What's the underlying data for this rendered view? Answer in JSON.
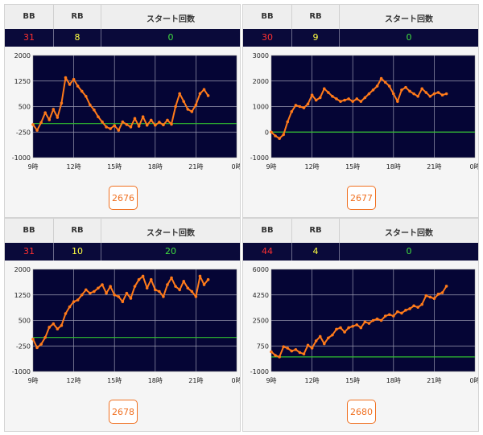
{
  "headers": {
    "bb": "BB",
    "rb": "RB",
    "start": "スタート回数"
  },
  "colors": {
    "bb": "#ff3030",
    "rb": "#ffff40",
    "start": "#40e040",
    "line": "#ff7a1a",
    "zero": "#30c030",
    "plot_bg": "#050535"
  },
  "panels": [
    {
      "bb": "31",
      "rb": "8",
      "start": "0",
      "machine": "2676"
    },
    {
      "bb": "30",
      "rb": "9",
      "start": "0",
      "machine": "2677"
    },
    {
      "bb": "31",
      "rb": "10",
      "start": "20",
      "machine": "2678"
    },
    {
      "bb": "44",
      "rb": "4",
      "start": "0",
      "machine": "2680"
    }
  ],
  "chart_data": [
    {
      "type": "line",
      "x_ticks": [
        "9時",
        "12時",
        "15時",
        "18時",
        "21時",
        "0時"
      ],
      "xlim": [
        9,
        24
      ],
      "y_ticks": [
        "2000",
        "1250",
        "500",
        "-250",
        "-1000"
      ],
      "ylim": [
        -1000,
        2000
      ],
      "grid": true,
      "series": [
        {
          "x": [
            9.0,
            9.3,
            9.6,
            9.9,
            10.2,
            10.5,
            10.8,
            11.1,
            11.4,
            11.7,
            12.0,
            12.3,
            12.6,
            12.9,
            13.2,
            13.5,
            13.8,
            14.1,
            14.4,
            14.7,
            15.0,
            15.3,
            15.6,
            15.9,
            16.2,
            16.5,
            16.8,
            17.1,
            17.4,
            17.7,
            18.0,
            18.3,
            18.6,
            18.9,
            19.2,
            19.5,
            19.8,
            20.1,
            20.4,
            20.7,
            21.0,
            21.3,
            21.6,
            21.9
          ],
          "y": [
            -30,
            -200,
            30,
            320,
            110,
            420,
            180,
            600,
            1350,
            1150,
            1300,
            1100,
            950,
            800,
            550,
            400,
            200,
            50,
            -100,
            -150,
            -60,
            -200,
            50,
            -30,
            -100,
            150,
            -80,
            200,
            -50,
            100,
            -50,
            40,
            -40,
            100,
            -20,
            500,
            880,
            650,
            420,
            350,
            550,
            880,
            1000,
            820
          ]
        }
      ]
    },
    {
      "type": "line",
      "x_ticks": [
        "9時",
        "12時",
        "15時",
        "18時",
        "21時",
        "0時"
      ],
      "xlim": [
        9,
        24
      ],
      "y_ticks": [
        "3000",
        "2000",
        "1000",
        "0",
        "-1000"
      ],
      "ylim": [
        -1000,
        3000
      ],
      "grid": true,
      "series": [
        {
          "x": [
            9.0,
            9.3,
            9.6,
            9.9,
            10.2,
            10.5,
            10.8,
            11.1,
            11.4,
            11.7,
            12.0,
            12.3,
            12.6,
            12.9,
            13.2,
            13.5,
            13.8,
            14.1,
            14.4,
            14.7,
            15.0,
            15.3,
            15.6,
            15.9,
            16.2,
            16.5,
            16.8,
            17.1,
            17.4,
            17.7,
            18.0,
            18.3,
            18.6,
            18.9,
            19.2,
            19.5,
            19.8,
            20.1,
            20.4,
            20.7,
            21.0,
            21.3,
            21.6,
            21.9
          ],
          "y": [
            0,
            -150,
            -250,
            -100,
            400,
            800,
            1050,
            1000,
            950,
            1100,
            1450,
            1250,
            1350,
            1700,
            1550,
            1400,
            1300,
            1200,
            1250,
            1300,
            1200,
            1300,
            1200,
            1350,
            1500,
            1650,
            1800,
            2100,
            1950,
            1800,
            1500,
            1200,
            1650,
            1750,
            1600,
            1500,
            1400,
            1700,
            1550,
            1400,
            1500,
            1550,
            1450,
            1500
          ]
        }
      ]
    },
    {
      "type": "line",
      "x_ticks": [
        "9時",
        "12時",
        "15時",
        "18時",
        "21時",
        "0時"
      ],
      "xlim": [
        9,
        24
      ],
      "y_ticks": [
        "2000",
        "1250",
        "500",
        "-250",
        "-1000"
      ],
      "ylim": [
        -1000,
        2000
      ],
      "grid": true,
      "series": [
        {
          "x": [
            9.0,
            9.3,
            9.6,
            9.9,
            10.2,
            10.5,
            10.8,
            11.1,
            11.4,
            11.7,
            12.0,
            12.3,
            12.6,
            12.9,
            13.2,
            13.5,
            13.8,
            14.1,
            14.4,
            14.7,
            15.0,
            15.3,
            15.6,
            15.9,
            16.2,
            16.5,
            16.8,
            17.1,
            17.4,
            17.7,
            18.0,
            18.3,
            18.6,
            18.9,
            19.2,
            19.5,
            19.8,
            20.1,
            20.4,
            20.7,
            21.0,
            21.3,
            21.6,
            21.9
          ],
          "y": [
            -50,
            -300,
            -200,
            0,
            300,
            400,
            250,
            350,
            700,
            900,
            1050,
            1100,
            1250,
            1400,
            1300,
            1350,
            1450,
            1550,
            1300,
            1500,
            1250,
            1200,
            1050,
            1300,
            1150,
            1500,
            1700,
            1800,
            1450,
            1700,
            1400,
            1350,
            1200,
            1550,
            1750,
            1500,
            1400,
            1650,
            1450,
            1350,
            1200,
            1800,
            1550,
            1700
          ]
        }
      ]
    },
    {
      "type": "line",
      "x_ticks": [
        "9時",
        "12時",
        "15時",
        "18時",
        "21時",
        "0時"
      ],
      "xlim": [
        9,
        24
      ],
      "y_ticks": [
        "6000",
        "4250",
        "2500",
        "750",
        "-1000"
      ],
      "ylim": [
        -1000,
        6000
      ],
      "grid": true,
      "series": [
        {
          "x": [
            9.0,
            9.3,
            9.6,
            9.9,
            10.2,
            10.5,
            10.8,
            11.1,
            11.4,
            11.7,
            12.0,
            12.3,
            12.6,
            12.9,
            13.2,
            13.5,
            13.8,
            14.1,
            14.4,
            14.7,
            15.0,
            15.3,
            15.6,
            15.9,
            16.2,
            16.5,
            16.8,
            17.1,
            17.4,
            17.7,
            18.0,
            18.3,
            18.6,
            18.9,
            19.2,
            19.5,
            19.8,
            20.1,
            20.4,
            20.7,
            21.0,
            21.3,
            21.6,
            21.9
          ],
          "y": [
            350,
            100,
            0,
            700,
            600,
            400,
            500,
            300,
            200,
            800,
            600,
            1100,
            1400,
            900,
            1300,
            1500,
            1900,
            2000,
            1700,
            2000,
            2100,
            2200,
            2000,
            2400,
            2300,
            2500,
            2600,
            2500,
            2800,
            2900,
            2800,
            3100,
            3000,
            3200,
            3300,
            3500,
            3400,
            3600,
            4200,
            4100,
            4000,
            4300,
            4400,
            4850
          ]
        }
      ]
    }
  ]
}
